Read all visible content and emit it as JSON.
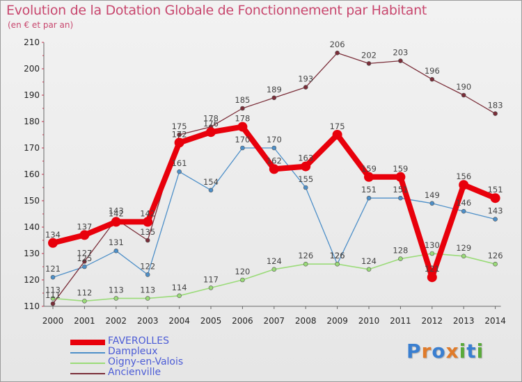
{
  "title": "Evolution de la Dotation Globale de Fonctionnement par Habitant",
  "subtitle": "(en € et par an)",
  "logo": {
    "text": "Proxiti",
    "letters": [
      {
        "ch": "P",
        "color": "#3a7fd0"
      },
      {
        "ch": "r",
        "color": "#e07b2a"
      },
      {
        "ch": "o",
        "color": "#3a7fd0"
      },
      {
        "ch": "x",
        "color": "#e07b2a"
      },
      {
        "ch": "i",
        "color": "#5aaa3a"
      },
      {
        "ch": "t",
        "color": "#3a7fd0"
      },
      {
        "ch": "i",
        "color": "#5aaa3a"
      }
    ]
  },
  "chart_data": {
    "type": "line",
    "title": "Evolution de la Dotation Globale de Fonctionnement par Habitant",
    "subtitle": "(en € et par an)",
    "xlabel": "",
    "ylabel": "",
    "x": [
      "2000",
      "2001",
      "2002",
      "2003",
      "2004",
      "2005",
      "2006",
      "2007",
      "2008",
      "2009",
      "2010",
      "2011",
      "2012",
      "2013",
      "2014"
    ],
    "ylim": [
      110,
      210
    ],
    "yticks": [
      110,
      120,
      130,
      140,
      150,
      160,
      170,
      180,
      190,
      200,
      210
    ],
    "grid": false,
    "legend_position": "bottom-left",
    "series": [
      {
        "name": "FAVEROLLES",
        "color": "#e8000b",
        "width": 8,
        "marker": 7,
        "values": [
          134,
          137,
          142,
          142,
          172,
          176,
          178,
          162,
          163,
          175,
          159,
          159,
          121,
          156,
          151
        ]
      },
      {
        "name": "Dampleux",
        "color": "#4d8fc8",
        "width": 1.3,
        "marker": 3,
        "values": [
          121,
          125,
          131,
          122,
          161,
          154,
          170,
          170,
          155,
          126,
          151,
          151,
          149,
          146,
          143
        ]
      },
      {
        "name": "Oigny-en-Valois",
        "color": "#9adb78",
        "width": 1.6,
        "marker": 3,
        "values": [
          113,
          112,
          113,
          113,
          114,
          117,
          120,
          124,
          126,
          126,
          124,
          128,
          130,
          129,
          126
        ]
      },
      {
        "name": "Ancienville",
        "color": "#7a2d38",
        "width": 1.3,
        "marker": 3,
        "values": [
          111,
          127,
          143,
          135,
          175,
          178,
          185,
          189,
          193,
          206,
          202,
          203,
          196,
          190,
          183
        ]
      }
    ]
  }
}
